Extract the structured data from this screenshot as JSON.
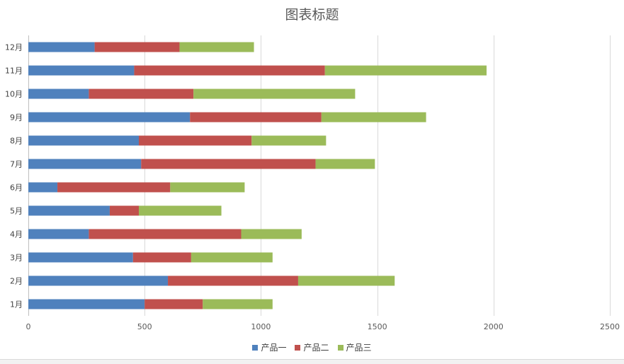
{
  "chart_data": {
    "type": "bar",
    "orientation": "horizontal",
    "stacked": true,
    "title": "图表标题",
    "categories": [
      "1月",
      "2月",
      "3月",
      "4月",
      "5月",
      "6月",
      "7月",
      "8月",
      "9月",
      "10月",
      "11月",
      "12月"
    ],
    "series": [
      {
        "name": "产品一",
        "color": "#4f81bd",
        "values": [
          500,
          600,
          450,
          260,
          350,
          125,
          485,
          475,
          695,
          260,
          455,
          285
        ]
      },
      {
        "name": "产品二",
        "color": "#c0504d",
        "values": [
          250,
          560,
          250,
          655,
          125,
          485,
          750,
          485,
          565,
          450,
          820,
          365
        ]
      },
      {
        "name": "产品三",
        "color": "#9bbb59",
        "values": [
          300,
          415,
          350,
          260,
          355,
          320,
          255,
          320,
          450,
          695,
          695,
          320
        ]
      }
    ],
    "xlim": [
      0,
      2500
    ],
    "xticks": [
      "0",
      "500",
      "1000",
      "1500",
      "2000",
      "2500"
    ],
    "grid": true,
    "legend_position": "bottom"
  }
}
